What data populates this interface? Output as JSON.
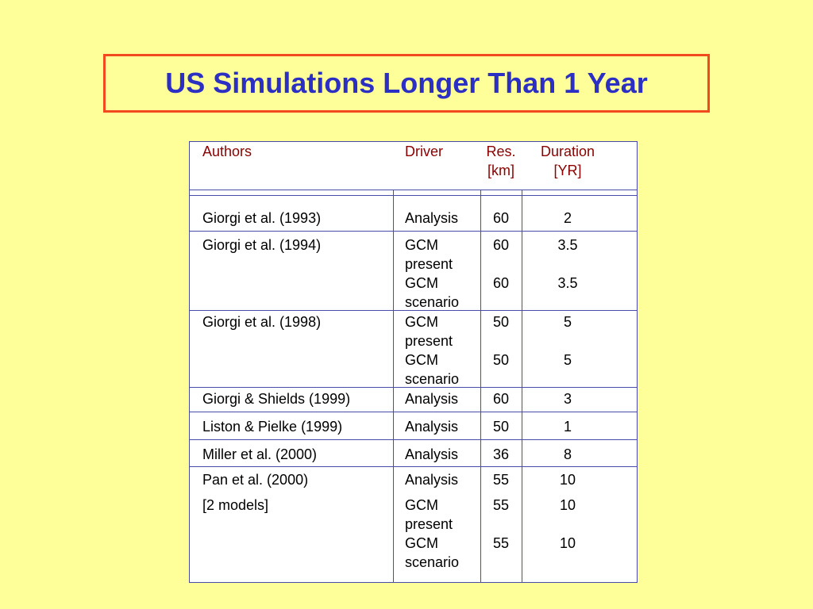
{
  "title": "US Simulations Longer Than 1 Year",
  "table": {
    "headers": {
      "authors": "Authors",
      "driver": "Driver",
      "res_line1": "Res.",
      "res_line2": "[km]",
      "duration_line1": "Duration",
      "duration_line2": "[YR]"
    },
    "rows": [
      {
        "author": "Giorgi et al. (1993)",
        "entries": [
          {
            "driver": [
              "Analysis"
            ],
            "res": "60",
            "dur": "2"
          }
        ]
      },
      {
        "author": "Giorgi et al. (1994)",
        "entries": [
          {
            "driver": [
              "GCM",
              "present"
            ],
            "res": "60",
            "dur": "3.5"
          },
          {
            "driver": [
              "GCM",
              "scenario"
            ],
            "res": "60",
            "dur": "3.5"
          }
        ]
      },
      {
        "author": "Giorgi et al. (1998)",
        "entries": [
          {
            "driver": [
              "GCM",
              "present"
            ],
            "res": "50",
            "dur": "5"
          },
          {
            "driver": [
              "GCM",
              "scenario"
            ],
            "res": "50",
            "dur": "5"
          }
        ]
      },
      {
        "author": "Giorgi & Shields (1999)",
        "entries": [
          {
            "driver": [
              "Analysis"
            ],
            "res": "60",
            "dur": "3"
          }
        ]
      },
      {
        "author": "Liston & Pielke (1999)",
        "entries": [
          {
            "driver": [
              "Analysis"
            ],
            "res": "50",
            "dur": "1"
          }
        ]
      },
      {
        "author": "Miller et al. (2000)",
        "entries": [
          {
            "driver": [
              "Analysis"
            ],
            "res": "36",
            "dur": "8"
          }
        ]
      },
      {
        "author": "Pan et al. (2000)",
        "entries": [
          {
            "driver": [
              "Analysis"
            ],
            "res": "55",
            "dur": "10"
          }
        ]
      },
      {
        "author": "[2 models]",
        "entries": [
          {
            "driver": [
              "GCM",
              "present"
            ],
            "res": "55",
            "dur": "10"
          },
          {
            "driver": [
              "GCM",
              "scenario"
            ],
            "res": "55",
            "dur": "10"
          }
        ]
      }
    ]
  }
}
